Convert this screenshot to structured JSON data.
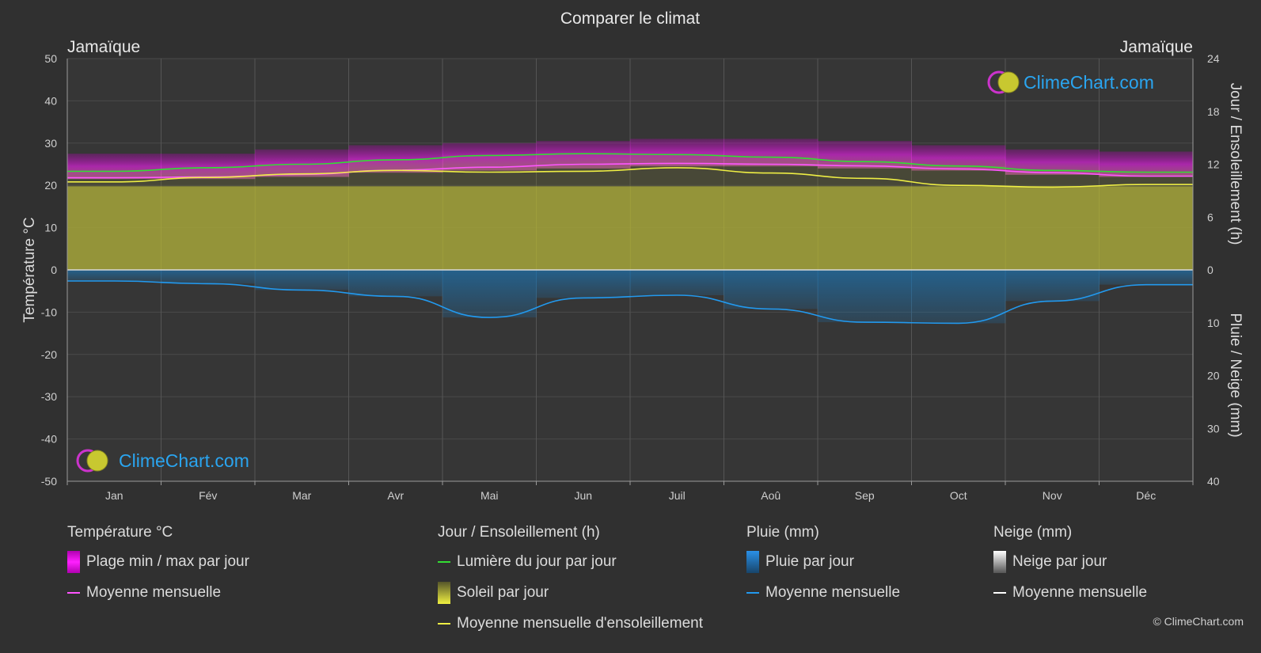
{
  "title": "Comparer le climat",
  "location_left": "Jamaïque",
  "location_right": "Jamaïque",
  "copyright": "© ClimeChart.com",
  "watermark": "ClimeChart.com",
  "colors": {
    "background": "#303030",
    "temp_range": "#d000d0",
    "temp_mean": "#ff55ff",
    "daylight": "#33dd33",
    "sunshine_fill": "#a4a43a",
    "sunshine_mean": "#eeee44",
    "rain_fill": "#1e6fa8",
    "rain_mean": "#2299ee",
    "snow_mean": "#ffffff",
    "brand": "#2aa5f0"
  },
  "legend": {
    "temperature": {
      "title": "Température °C",
      "range_label": "Plage min / max par jour",
      "mean_label": "Moyenne mensuelle"
    },
    "sun": {
      "title": "Jour / Ensoleillement (h)",
      "daylight_label": "Lumière du jour par jour",
      "sunshine_label": "Soleil par jour",
      "sunshine_mean_label": "Moyenne mensuelle d'ensoleillement"
    },
    "rain": {
      "title": "Pluie (mm)",
      "rain_label": "Pluie par jour",
      "mean_label": "Moyenne mensuelle"
    },
    "snow": {
      "title": "Neige (mm)",
      "snow_label": "Neige par jour",
      "mean_label": "Moyenne mensuelle"
    }
  },
  "chart_data": {
    "type": "line",
    "title": "Comparer le climat",
    "months": [
      "Jan",
      "Fév",
      "Mar",
      "Avr",
      "Mai",
      "Jun",
      "Juil",
      "Aoû",
      "Sep",
      "Oct",
      "Nov",
      "Déc"
    ],
    "left_axis": {
      "label": "Température °C",
      "min": -50,
      "max": 50,
      "ticks": [
        50,
        40,
        30,
        20,
        10,
        0,
        -10,
        -20,
        -30,
        -40,
        -50
      ]
    },
    "right_axis_top": {
      "label": "Jour / Ensoleillement (h)",
      "min": 0,
      "max": 24,
      "ticks": [
        24,
        18,
        12,
        6,
        0
      ]
    },
    "right_axis_bottom": {
      "label": "Pluie / Neige (mm)",
      "min": 0,
      "max": 40,
      "ticks": [
        0,
        10,
        20,
        30,
        40
      ]
    },
    "grid": true,
    "series": [
      {
        "name": "Plage min / max par jour",
        "unit": "°C",
        "min": [
          21.5,
          21.5,
          22,
          23,
          23.5,
          24,
          24.5,
          24.5,
          24,
          23.5,
          22.5,
          22
        ],
        "max": [
          27.5,
          27.5,
          28.5,
          29.5,
          30,
          30.5,
          31,
          31,
          30.5,
          29.5,
          28.5,
          28
        ]
      },
      {
        "name": "Moyenne mensuelle",
        "unit": "°C",
        "values": [
          21.8,
          22.0,
          22.6,
          23.6,
          24.3,
          25.0,
          25.2,
          25.0,
          24.6,
          23.9,
          23.0,
          22.2
        ]
      },
      {
        "name": "Lumière du jour par jour",
        "unit": "h",
        "values": [
          11.2,
          11.6,
          12.0,
          12.5,
          13.0,
          13.2,
          13.1,
          12.8,
          12.3,
          11.8,
          11.3,
          11.1
        ]
      },
      {
        "name": "Soleil par jour",
        "unit": "h",
        "values": [
          9.5,
          9.5,
          9.5,
          9.5,
          9.5,
          9.5,
          9.5,
          9.5,
          9.5,
          9.5,
          9.5,
          9.5
        ]
      },
      {
        "name": "Moyenne mensuelle d'ensoleillement",
        "unit": "h",
        "values": [
          10.0,
          10.5,
          10.9,
          11.3,
          11.1,
          11.2,
          11.6,
          11.0,
          10.4,
          9.6,
          9.4,
          9.7
        ]
      },
      {
        "name": "Pluie par jour / Moyenne mensuelle",
        "unit": "mm",
        "values": [
          2.1,
          2.6,
          3.8,
          5.0,
          9.0,
          5.3,
          4.8,
          7.4,
          9.9,
          10.1,
          5.9,
          2.8
        ]
      },
      {
        "name": "Neige / Moyenne mensuelle",
        "unit": "mm",
        "values": [
          0,
          0,
          0,
          0,
          0,
          0,
          0,
          0,
          0,
          0,
          0,
          0
        ]
      }
    ]
  }
}
